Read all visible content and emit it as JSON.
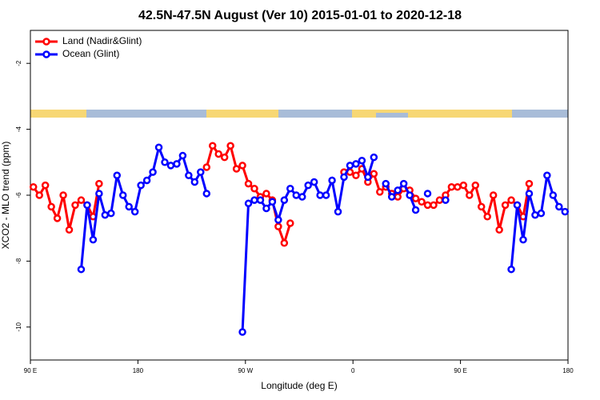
{
  "chart_data": {
    "type": "line",
    "title": "42.5N-47.5N August (Ver 10)   2015-01-01 to 2020-12-18",
    "x_label": "Longitude (deg E)",
    "y_label": "XCO2 - MLO trend (ppm)",
    "xlim": [
      90,
      540
    ],
    "xticks": [
      {
        "value": 90,
        "label": "90 E"
      },
      {
        "value": 180,
        "label": "180"
      },
      {
        "value": 270,
        "label": "90 W"
      },
      {
        "value": 360,
        "label": "0"
      },
      {
        "value": 450,
        "label": "90 E"
      },
      {
        "value": 540,
        "label": "180"
      }
    ],
    "ylim": [
      -11,
      -1
    ],
    "yticks": [
      -10,
      -8,
      -6,
      -4,
      -2
    ],
    "legend": "top-left",
    "series": [
      {
        "name": "Land (Nadir&Glint)",
        "color": "#ff0000",
        "x": [
          92.5,
          97.5,
          102.5,
          107.5,
          112.5,
          117.5,
          122.5,
          127.5,
          132.5,
          137.5,
          142.5,
          147.5,
          null,
          237.5,
          242.5,
          247.5,
          252.5,
          257.5,
          262.5,
          267.5,
          272.5,
          277.5,
          282.5,
          287.5,
          292.5,
          297.5,
          302.5,
          307.5,
          null,
          352.5,
          357.5,
          362.5,
          367.5,
          372.5,
          377.5,
          382.5,
          387.5,
          392.5,
          397.5,
          402.5,
          407.5,
          412.5,
          417.5,
          422.5,
          427.5,
          432.5,
          437.5,
          442.5,
          447.5,
          452.5,
          457.5,
          462.5,
          467.5,
          472.5,
          477.5,
          482.5,
          487.5,
          492.5,
          497.5,
          502.5,
          507.5
        ],
        "values": [
          -5.75,
          -6.0,
          -5.7,
          -6.35,
          -6.7,
          -6.0,
          -7.05,
          -6.3,
          -6.15,
          -6.3,
          -6.65,
          -5.65,
          null,
          -5.15,
          -4.5,
          -4.75,
          -4.85,
          -4.5,
          -5.2,
          -5.1,
          -5.65,
          -5.8,
          -6.05,
          -5.95,
          -6.15,
          -6.95,
          -7.45,
          -6.85,
          null,
          -5.3,
          -5.3,
          -5.4,
          -5.2,
          -5.6,
          -5.35,
          -5.9,
          -5.75,
          -5.95,
          -6.05,
          -5.8,
          -5.85,
          -6.1,
          -6.2,
          -6.3,
          -6.3,
          -6.15,
          -6.0,
          -5.75,
          -5.75,
          -5.7,
          -6.0,
          -5.7,
          -6.35,
          -6.65,
          -6.0,
          -7.05,
          -6.3,
          -6.15,
          -6.3,
          -6.65,
          -5.65
        ]
      },
      {
        "name": "Ocean (Glint)",
        "color": "#0000ff",
        "x": [
          132.5,
          137.5,
          142.5,
          147.5,
          152.5,
          157.5,
          162.5,
          167.5,
          172.5,
          177.5,
          182.5,
          187.5,
          192.5,
          197.5,
          202.5,
          207.5,
          212.5,
          217.5,
          222.5,
          227.5,
          232.5,
          237.5,
          null,
          267.5,
          272.5,
          277.5,
          282.5,
          287.5,
          292.5,
          297.5,
          302.5,
          307.5,
          312.5,
          317.5,
          322.5,
          327.5,
          332.5,
          337.5,
          342.5,
          347.5,
          352.5,
          357.5,
          362.5,
          367.5,
          372.5,
          377.5,
          null,
          387.5,
          392.5,
          397.5,
          402.5,
          407.5,
          412.5,
          null,
          422.5,
          null,
          437.5,
          null,
          492.5,
          497.5,
          502.5,
          507.5,
          512.5,
          517.5,
          522.5,
          527.5,
          532.5,
          537.5
        ],
        "values": [
          -8.25,
          -6.3,
          -7.35,
          -5.95,
          -6.6,
          -6.55,
          -5.4,
          -6.0,
          -6.35,
          -6.5,
          -5.7,
          -5.55,
          -5.3,
          -4.55,
          -5.0,
          -5.1,
          -5.05,
          -4.8,
          -5.4,
          -5.6,
          -5.3,
          -5.95,
          null,
          -10.15,
          -6.25,
          -6.15,
          -6.15,
          -6.4,
          -6.2,
          -6.75,
          -6.15,
          -5.8,
          -6.0,
          -6.05,
          -5.7,
          -5.6,
          -6.0,
          -6.0,
          -5.55,
          -6.5,
          -5.45,
          -5.1,
          -5.05,
          -4.95,
          -5.45,
          -4.85,
          null,
          -5.65,
          -6.05,
          -5.85,
          -5.65,
          -6.0,
          -6.45,
          null,
          -5.95,
          null,
          -6.15,
          null,
          -8.25,
          -6.3,
          -7.35,
          -5.95,
          -6.6,
          -6.55,
          -5.4,
          -6.0,
          -6.35,
          -6.5
        ]
      }
    ]
  }
}
